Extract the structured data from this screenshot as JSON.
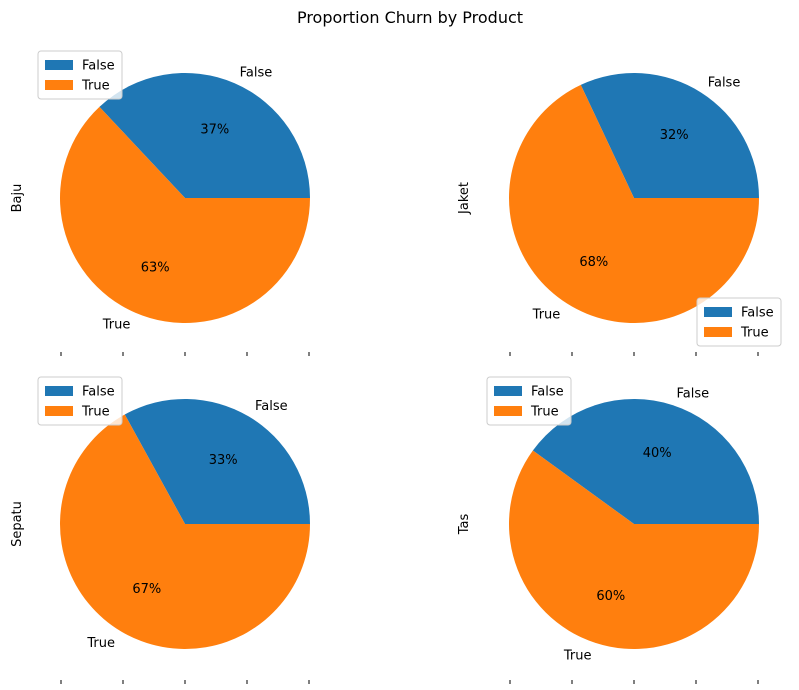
{
  "figure": {
    "title": "Proportion Churn by Product"
  },
  "colors": {
    "false_slice": "#1f77b4",
    "true_slice": "#ff7f0e",
    "legend_border": "#cccccc"
  },
  "chart_data": [
    {
      "type": "pie",
      "ylabel": "Baju",
      "labels": [
        "False",
        "True"
      ],
      "values": [
        37,
        63
      ],
      "pct_labels": [
        "37%",
        "63%"
      ],
      "legend": {
        "entries": [
          "False",
          "True"
        ],
        "placement": "top-left"
      }
    },
    {
      "type": "pie",
      "ylabel": "Jaket",
      "labels": [
        "False",
        "True"
      ],
      "values": [
        32,
        68
      ],
      "pct_labels": [
        "32%",
        "68%"
      ],
      "legend": {
        "entries": [
          "False",
          "True"
        ],
        "placement": "bottom-right"
      }
    },
    {
      "type": "pie",
      "ylabel": "Sepatu",
      "labels": [
        "False",
        "True"
      ],
      "values": [
        33,
        67
      ],
      "pct_labels": [
        "33%",
        "67%"
      ],
      "legend": {
        "entries": [
          "False",
          "True"
        ],
        "placement": "top-left"
      }
    },
    {
      "type": "pie",
      "ylabel": "Tas",
      "labels": [
        "False",
        "True"
      ],
      "values": [
        40,
        60
      ],
      "pct_labels": [
        "40%",
        "60%"
      ],
      "legend": {
        "entries": [
          "False",
          "True"
        ],
        "placement": "top-left"
      }
    }
  ]
}
